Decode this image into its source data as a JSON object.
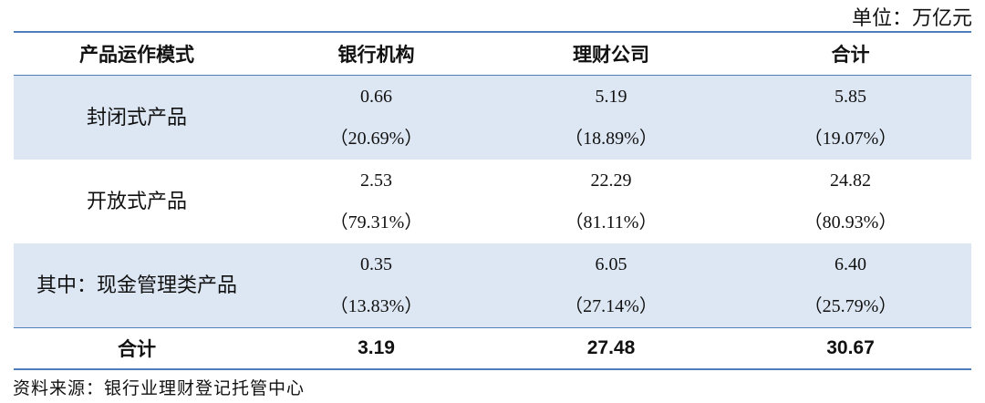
{
  "unit": "单位：万亿元",
  "table": {
    "header": [
      "产品运作模式",
      "银行机构",
      "理财公司",
      "合计"
    ],
    "rows": [
      {
        "label": "封闭式产品",
        "cells": [
          [
            "0.66",
            "（20.69%）"
          ],
          [
            "5.19",
            "（18.89%）"
          ],
          [
            "5.85",
            "（19.07%）"
          ]
        ]
      },
      {
        "label": "开放式产品",
        "cells": [
          [
            "2.53",
            "（79.31%）"
          ],
          [
            "22.29",
            "（81.11%）"
          ],
          [
            "24.82",
            "（80.93%）"
          ]
        ]
      },
      {
        "label": "其中：现金管理类产品",
        "cells": [
          [
            "0.35",
            "（13.83%）"
          ],
          [
            "6.05",
            "（27.14%）"
          ],
          [
            "6.40",
            "（25.79%）"
          ]
        ]
      }
    ],
    "total": [
      "合计",
      "3.19",
      "27.48",
      "30.67"
    ]
  },
  "source": "资料来源：银行业理财登记托管中心"
}
